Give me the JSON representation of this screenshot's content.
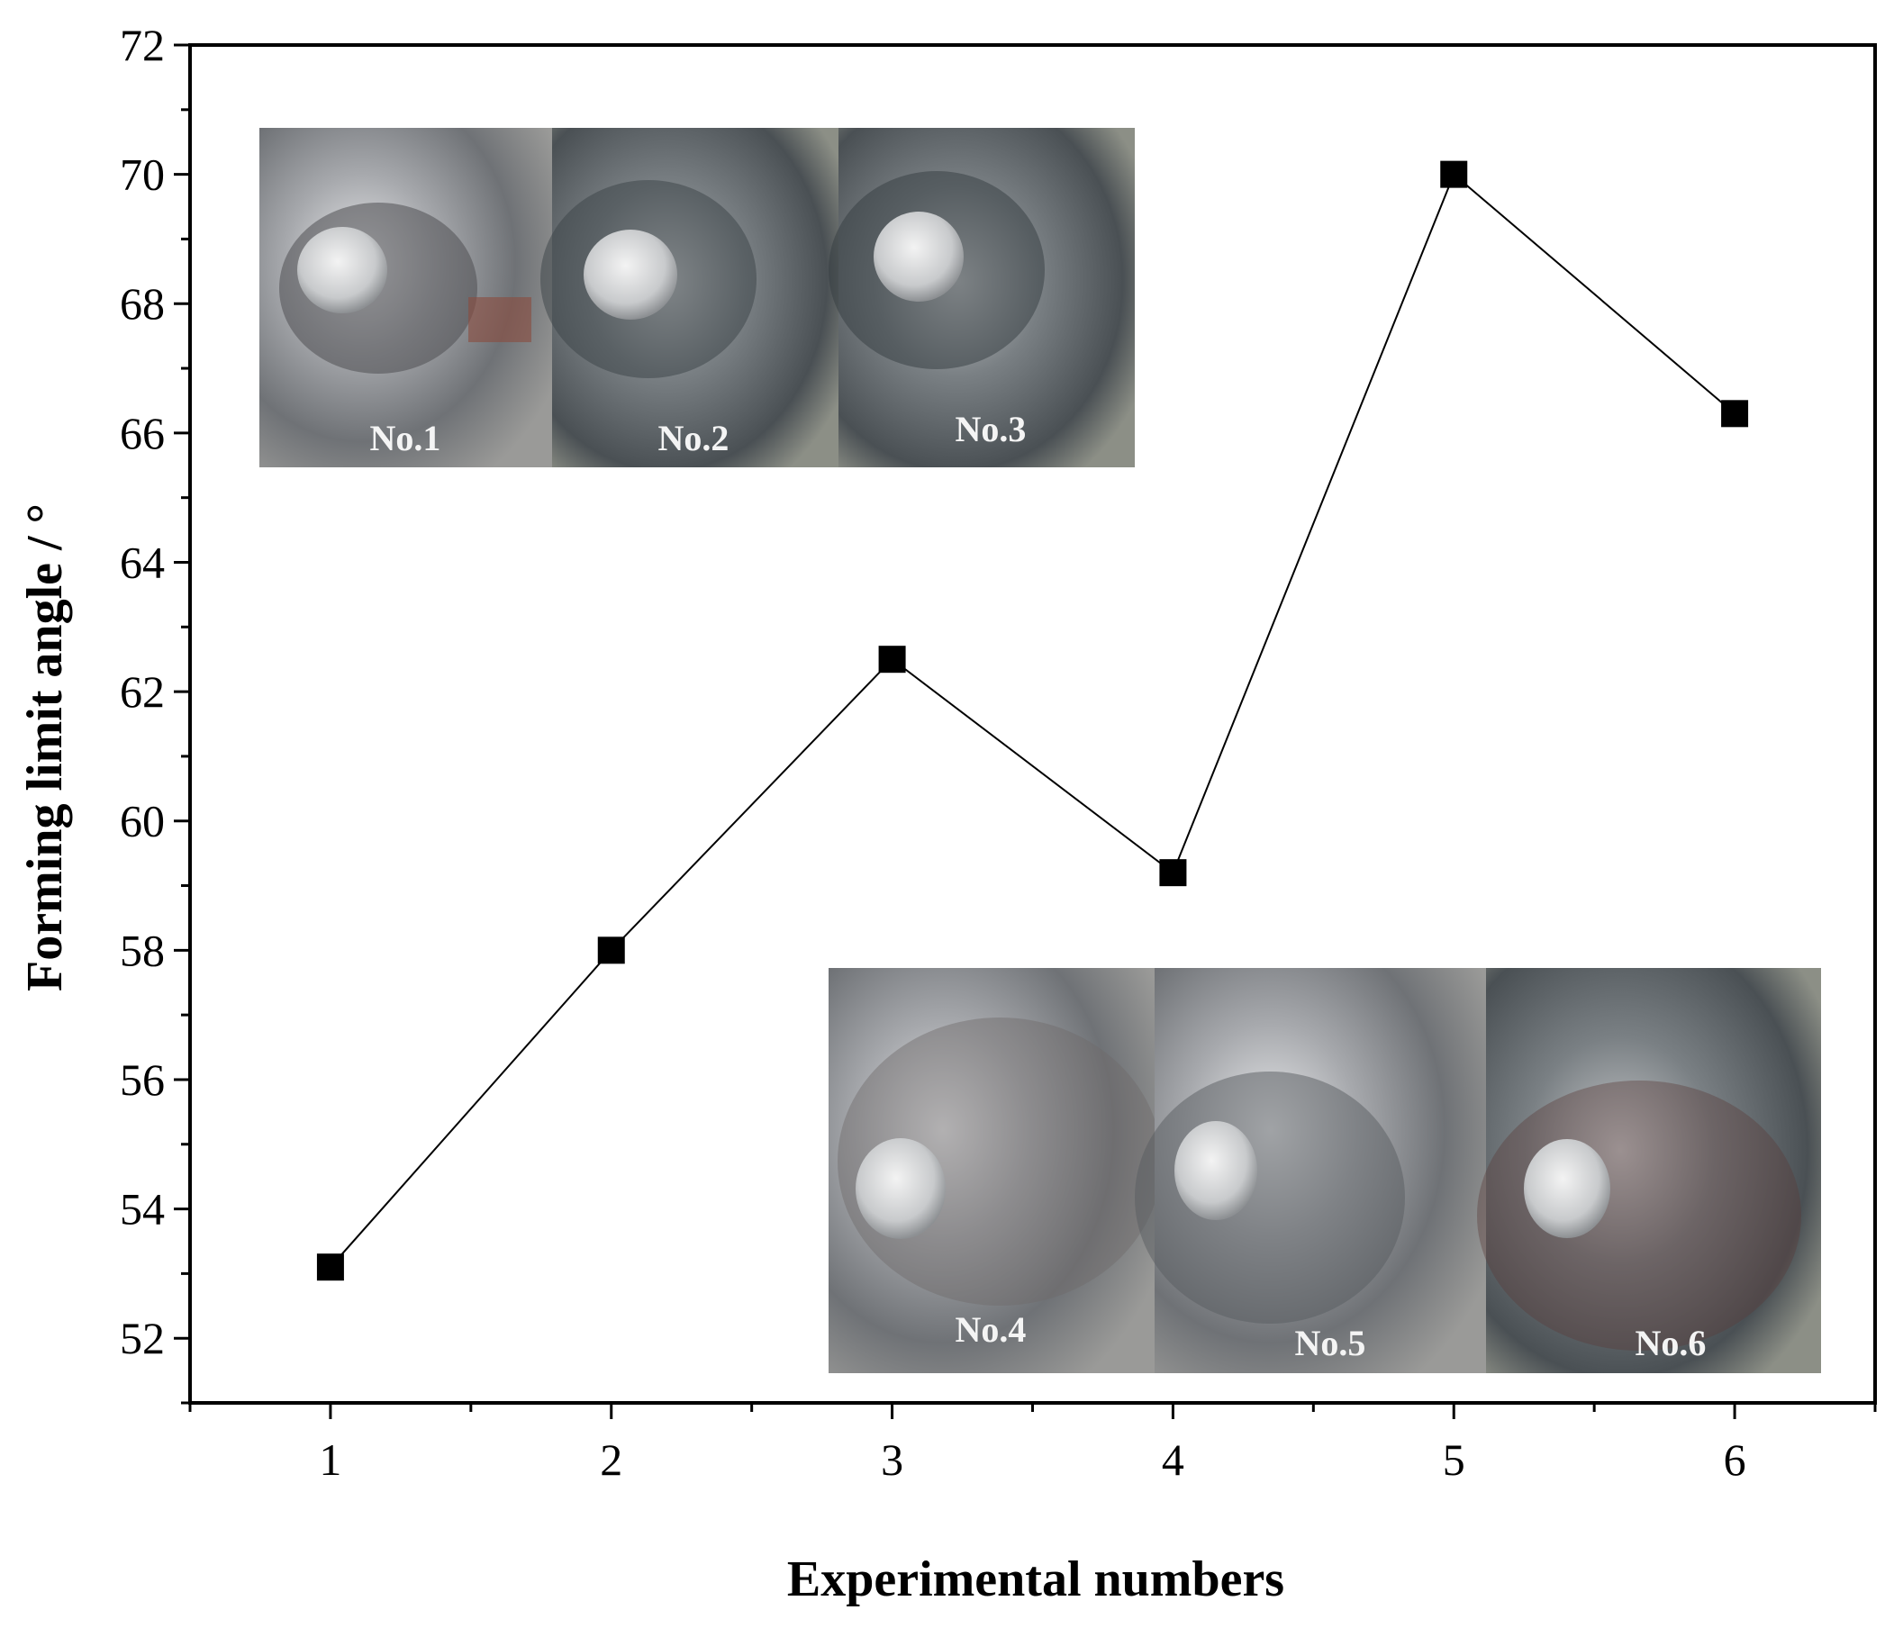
{
  "chart_data": {
    "type": "scatter",
    "title": "",
    "xlabel": "Experimental numbers",
    "ylabel": "Forming limit angle / °",
    "xlim": [
      0.5,
      6.5
    ],
    "ylim": [
      51,
      72
    ],
    "x_ticks": [
      1,
      2,
      3,
      4,
      5,
      6
    ],
    "y_ticks": [
      52,
      54,
      56,
      58,
      60,
      62,
      64,
      66,
      68,
      70,
      72
    ],
    "grid": false,
    "legend": "none",
    "marker": "square",
    "connected_by_line": true,
    "series": [
      {
        "x": [
          1,
          2,
          3,
          4,
          5,
          6
        ],
        "y": [
          53.1,
          58.0,
          62.5,
          59.2,
          70.0,
          66.3
        ],
        "color": "#000000"
      }
    ],
    "inset_photos": {
      "top_left": [
        "No.1",
        "No.2",
        "No.3"
      ],
      "bottom_right": [
        "No.4",
        "No.5",
        "No.6"
      ]
    }
  }
}
